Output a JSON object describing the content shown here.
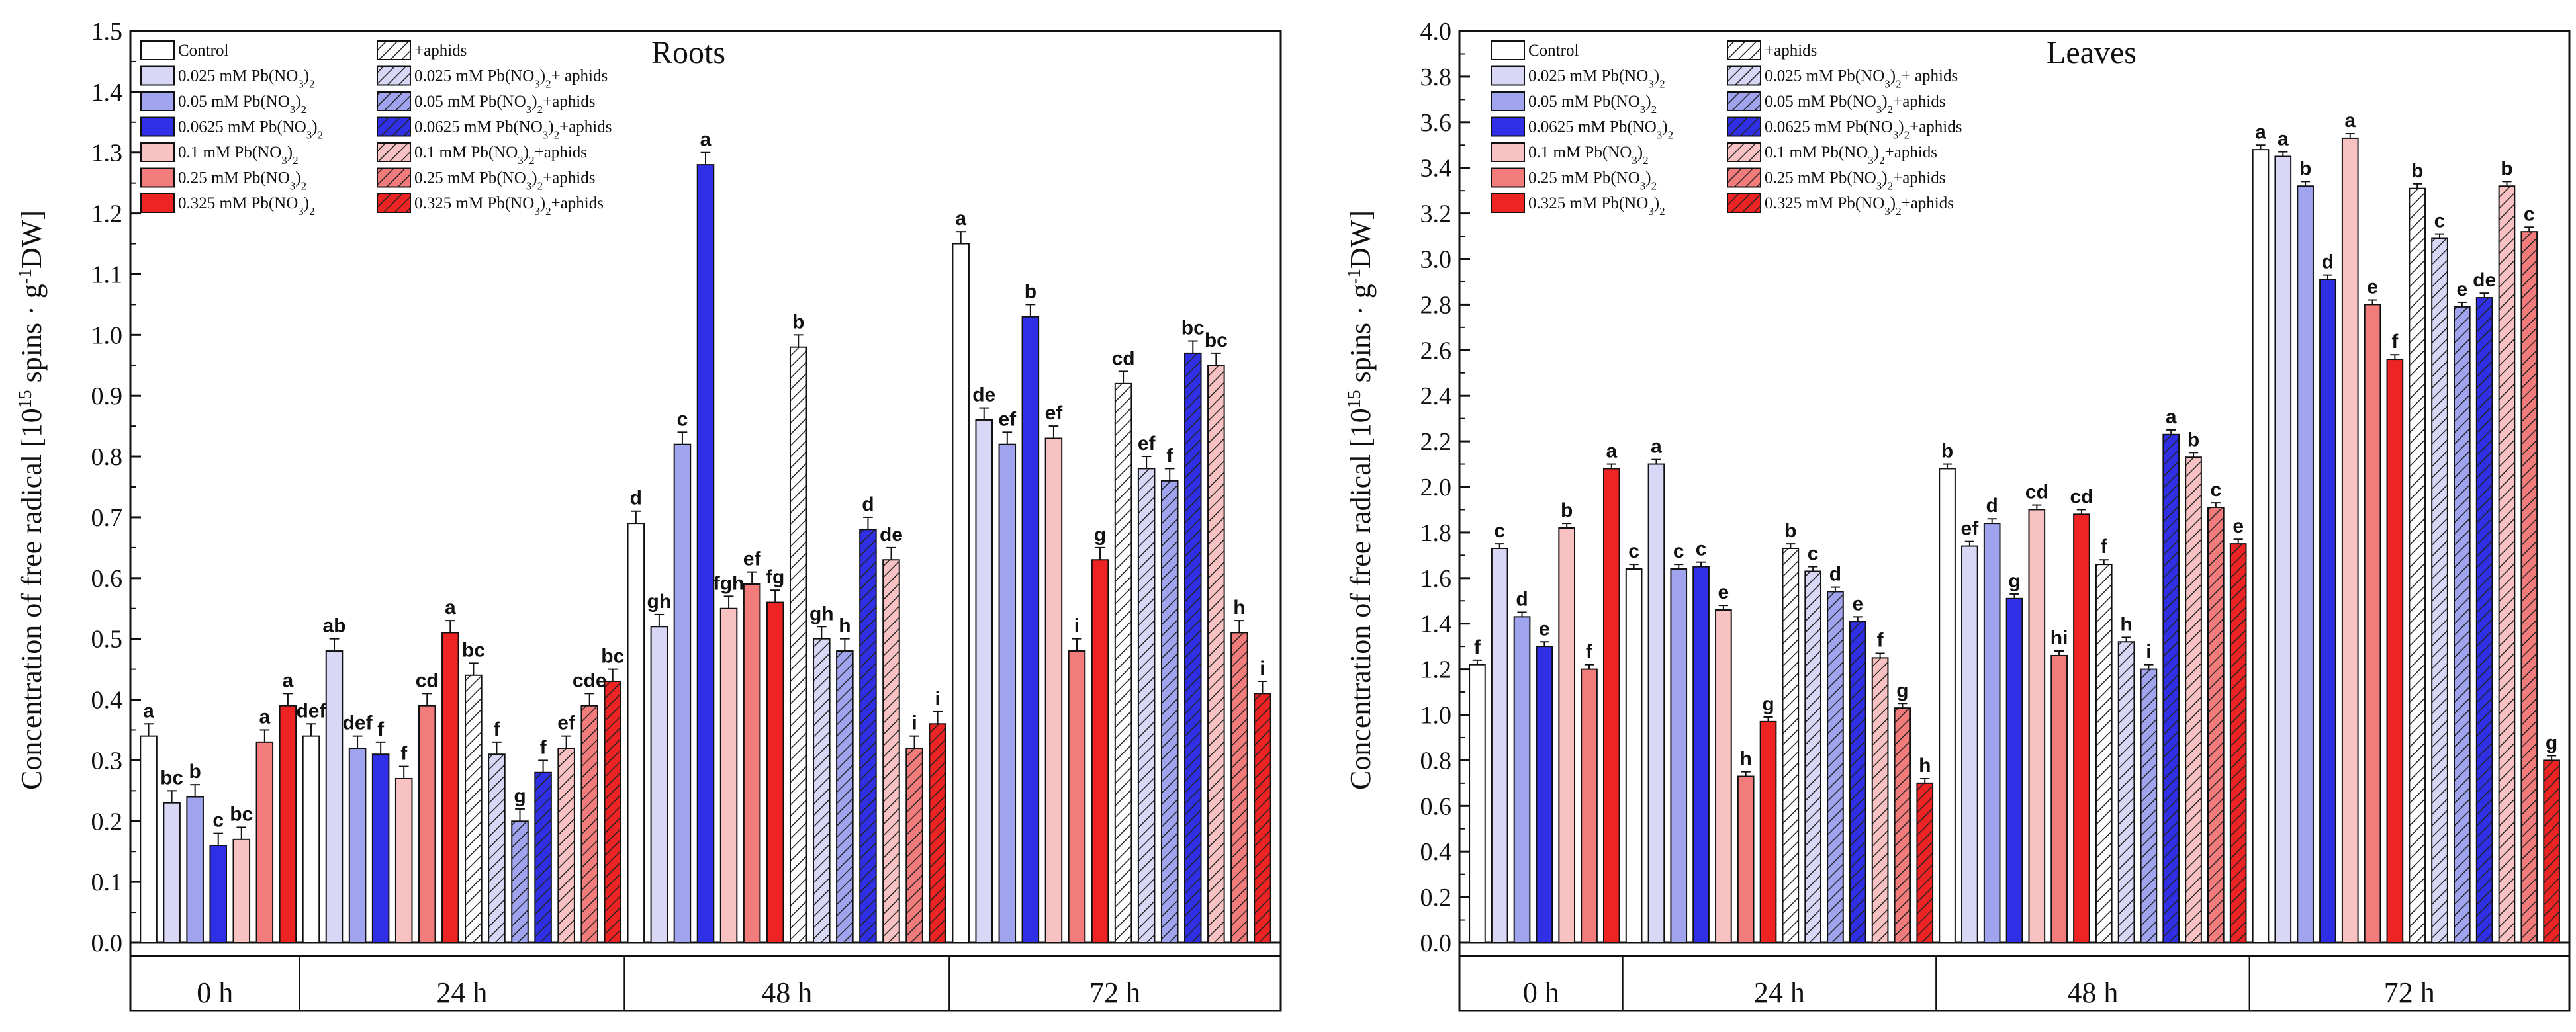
{
  "colors": {
    "control": "#ffffff",
    "pb_0025": "#d8d8f6",
    "pb_005": "#a0a4ee",
    "pb_00625": "#2f2fe6",
    "pb_01": "#f8c2c2",
    "pb_025": "#f27b7b",
    "pb_0325": "#ee2323"
  },
  "legend": {
    "plain": [
      {
        "key": "control",
        "label": "Control"
      },
      {
        "key": "pb_0025",
        "label": "0.025 mM Pb(NO3)2"
      },
      {
        "key": "pb_005",
        "label": "0.05  mM Pb(NO3)2"
      },
      {
        "key": "pb_00625",
        "label": "0.0625  mM Pb(NO3)2"
      },
      {
        "key": "pb_01",
        "label": "0.1  mM Pb(NO3)2"
      },
      {
        "key": "pb_025",
        "label": "0.25  mM Pb(NO3)2"
      },
      {
        "key": "pb_0325",
        "label": "0.325  mM Pb(NO3)2"
      }
    ],
    "hatched": [
      {
        "key": "control",
        "label": "+aphids"
      },
      {
        "key": "pb_0025",
        "label": "0.025 mM Pb(NO3)2+ aphids"
      },
      {
        "key": "pb_005",
        "label": "0.05 mM Pb(NO3)2+aphids"
      },
      {
        "key": "pb_00625",
        "label": "0.0625 mM Pb(NO3)2+aphids"
      },
      {
        "key": "pb_01",
        "label": "0.1 mM Pb(NO3)2+aphids"
      },
      {
        "key": "pb_025",
        "label": "0.25 mM Pb(NO3)2+aphids"
      },
      {
        "key": "pb_0325",
        "label": "0.325 mM Pb(NO3)2+aphids"
      }
    ]
  },
  "chart_data": [
    {
      "type": "bar",
      "title": "Roots",
      "ylabel": "Concentration of free radical [10^15 spins · g^-1 DW]",
      "ylim": [
        0,
        1.5
      ],
      "yticks": [
        "0.0",
        "0.1",
        "0.2",
        "0.3",
        "0.4",
        "0.5",
        "0.6",
        "0.7",
        "0.8",
        "0.9",
        "1.0",
        "1.1",
        "1.2",
        "1.3",
        "1.4",
        "1.5"
      ],
      "time_labels": [
        "0 h",
        "24 h",
        "48 h",
        "72 h"
      ],
      "bars": [
        {
          "time": 0,
          "color": "control",
          "hatched": false,
          "value": 0.34,
          "error": 0.02,
          "letter": "a"
        },
        {
          "time": 0,
          "color": "pb_0025",
          "hatched": false,
          "value": 0.23,
          "error": 0.02,
          "letter": "bc"
        },
        {
          "time": 0,
          "color": "pb_005",
          "hatched": false,
          "value": 0.24,
          "error": 0.02,
          "letter": "b"
        },
        {
          "time": 0,
          "color": "pb_00625",
          "hatched": false,
          "value": 0.16,
          "error": 0.02,
          "letter": "c"
        },
        {
          "time": 0,
          "color": "pb_01",
          "hatched": false,
          "value": 0.17,
          "error": 0.02,
          "letter": "bc"
        },
        {
          "time": 0,
          "color": "pb_025",
          "hatched": false,
          "value": 0.33,
          "error": 0.02,
          "letter": "a"
        },
        {
          "time": 0,
          "color": "pb_0325",
          "hatched": false,
          "value": 0.39,
          "error": 0.02,
          "letter": "a"
        },
        {
          "time": 1,
          "color": "control",
          "hatched": false,
          "value": 0.34,
          "error": 0.02,
          "letter": "def"
        },
        {
          "time": 1,
          "color": "pb_0025",
          "hatched": false,
          "value": 0.48,
          "error": 0.02,
          "letter": "ab"
        },
        {
          "time": 1,
          "color": "pb_005",
          "hatched": false,
          "value": 0.32,
          "error": 0.02,
          "letter": "def"
        },
        {
          "time": 1,
          "color": "pb_00625",
          "hatched": false,
          "value": 0.31,
          "error": 0.02,
          "letter": "f"
        },
        {
          "time": 1,
          "color": "pb_01",
          "hatched": false,
          "value": 0.27,
          "error": 0.02,
          "letter": "f"
        },
        {
          "time": 1,
          "color": "pb_025",
          "hatched": false,
          "value": 0.39,
          "error": 0.02,
          "letter": "cd"
        },
        {
          "time": 1,
          "color": "pb_0325",
          "hatched": false,
          "value": 0.51,
          "error": 0.02,
          "letter": "a"
        },
        {
          "time": 1,
          "color": "control",
          "hatched": true,
          "value": 0.44,
          "error": 0.02,
          "letter": "bc"
        },
        {
          "time": 1,
          "color": "pb_0025",
          "hatched": true,
          "value": 0.31,
          "error": 0.02,
          "letter": "f"
        },
        {
          "time": 1,
          "color": "pb_005",
          "hatched": true,
          "value": 0.2,
          "error": 0.02,
          "letter": "g"
        },
        {
          "time": 1,
          "color": "pb_00625",
          "hatched": true,
          "value": 0.28,
          "error": 0.02,
          "letter": "f"
        },
        {
          "time": 1,
          "color": "pb_01",
          "hatched": true,
          "value": 0.32,
          "error": 0.02,
          "letter": "ef"
        },
        {
          "time": 1,
          "color": "pb_025",
          "hatched": true,
          "value": 0.39,
          "error": 0.02,
          "letter": "cde"
        },
        {
          "time": 1,
          "color": "pb_0325",
          "hatched": true,
          "value": 0.43,
          "error": 0.02,
          "letter": "bc"
        },
        {
          "time": 2,
          "color": "control",
          "hatched": false,
          "value": 0.69,
          "error": 0.02,
          "letter": "d"
        },
        {
          "time": 2,
          "color": "pb_0025",
          "hatched": false,
          "value": 0.52,
          "error": 0.02,
          "letter": "gh"
        },
        {
          "time": 2,
          "color": "pb_005",
          "hatched": false,
          "value": 0.82,
          "error": 0.02,
          "letter": "c"
        },
        {
          "time": 2,
          "color": "pb_00625",
          "hatched": false,
          "value": 1.28,
          "error": 0.02,
          "letter": "a"
        },
        {
          "time": 2,
          "color": "pb_01",
          "hatched": false,
          "value": 0.55,
          "error": 0.02,
          "letter": "fgh"
        },
        {
          "time": 2,
          "color": "pb_025",
          "hatched": false,
          "value": 0.59,
          "error": 0.02,
          "letter": "ef"
        },
        {
          "time": 2,
          "color": "pb_0325",
          "hatched": false,
          "value": 0.56,
          "error": 0.02,
          "letter": "fg"
        },
        {
          "time": 2,
          "color": "control",
          "hatched": true,
          "value": 0.98,
          "error": 0.02,
          "letter": "b"
        },
        {
          "time": 2,
          "color": "pb_0025",
          "hatched": true,
          "value": 0.5,
          "error": 0.02,
          "letter": "gh"
        },
        {
          "time": 2,
          "color": "pb_005",
          "hatched": true,
          "value": 0.48,
          "error": 0.02,
          "letter": "h"
        },
        {
          "time": 2,
          "color": "pb_00625",
          "hatched": true,
          "value": 0.68,
          "error": 0.02,
          "letter": "d"
        },
        {
          "time": 2,
          "color": "pb_01",
          "hatched": true,
          "value": 0.63,
          "error": 0.02,
          "letter": "de"
        },
        {
          "time": 2,
          "color": "pb_025",
          "hatched": true,
          "value": 0.32,
          "error": 0.02,
          "letter": "i"
        },
        {
          "time": 2,
          "color": "pb_0325",
          "hatched": true,
          "value": 0.36,
          "error": 0.02,
          "letter": "i"
        },
        {
          "time": 3,
          "color": "control",
          "hatched": false,
          "value": 1.15,
          "error": 0.02,
          "letter": "a"
        },
        {
          "time": 3,
          "color": "pb_0025",
          "hatched": false,
          "value": 0.86,
          "error": 0.02,
          "letter": "de"
        },
        {
          "time": 3,
          "color": "pb_005",
          "hatched": false,
          "value": 0.82,
          "error": 0.02,
          "letter": "ef"
        },
        {
          "time": 3,
          "color": "pb_00625",
          "hatched": false,
          "value": 1.03,
          "error": 0.02,
          "letter": "b"
        },
        {
          "time": 3,
          "color": "pb_01",
          "hatched": false,
          "value": 0.83,
          "error": 0.02,
          "letter": "ef"
        },
        {
          "time": 3,
          "color": "pb_025",
          "hatched": false,
          "value": 0.48,
          "error": 0.02,
          "letter": "i"
        },
        {
          "time": 3,
          "color": "pb_0325",
          "hatched": false,
          "value": 0.63,
          "error": 0.02,
          "letter": "g"
        },
        {
          "time": 3,
          "color": "control",
          "hatched": true,
          "value": 0.92,
          "error": 0.02,
          "letter": "cd"
        },
        {
          "time": 3,
          "color": "pb_0025",
          "hatched": true,
          "value": 0.78,
          "error": 0.02,
          "letter": "ef"
        },
        {
          "time": 3,
          "color": "pb_005",
          "hatched": true,
          "value": 0.76,
          "error": 0.02,
          "letter": "f"
        },
        {
          "time": 3,
          "color": "pb_00625",
          "hatched": true,
          "value": 0.97,
          "error": 0.02,
          "letter": "bc"
        },
        {
          "time": 3,
          "color": "pb_01",
          "hatched": true,
          "value": 0.95,
          "error": 0.02,
          "letter": "bc"
        },
        {
          "time": 3,
          "color": "pb_025",
          "hatched": true,
          "value": 0.51,
          "error": 0.02,
          "letter": "h"
        },
        {
          "time": 3,
          "color": "pb_0325",
          "hatched": true,
          "value": 0.41,
          "error": 0.02,
          "letter": "i"
        }
      ]
    },
    {
      "type": "bar",
      "title": "Leaves",
      "ylabel": "Concentration of free radical [10^15 spins · g^-1 DW]",
      "ylim": [
        0,
        4.0
      ],
      "yticks": [
        "0.0",
        "0.2",
        "0.4",
        "0.6",
        "0.8",
        "1.0",
        "1.2",
        "1.4",
        "1.6",
        "1.8",
        "2.0",
        "2.2",
        "2.4",
        "2.6",
        "2.8",
        "3.0",
        "3.2",
        "3.4",
        "3.6",
        "3.8",
        "4.0"
      ],
      "time_labels": [
        "0 h",
        "24 h",
        "48 h",
        "72 h"
      ],
      "bars": [
        {
          "time": 0,
          "color": "control",
          "hatched": false,
          "value": 1.22,
          "error": 0.02,
          "letter": "f"
        },
        {
          "time": 0,
          "color": "pb_0025",
          "hatched": false,
          "value": 1.73,
          "error": 0.02,
          "letter": "c"
        },
        {
          "time": 0,
          "color": "pb_005",
          "hatched": false,
          "value": 1.43,
          "error": 0.02,
          "letter": "d"
        },
        {
          "time": 0,
          "color": "pb_00625",
          "hatched": false,
          "value": 1.3,
          "error": 0.02,
          "letter": "e"
        },
        {
          "time": 0,
          "color": "pb_01",
          "hatched": false,
          "value": 1.82,
          "error": 0.02,
          "letter": "b"
        },
        {
          "time": 0,
          "color": "pb_025",
          "hatched": false,
          "value": 1.2,
          "error": 0.02,
          "letter": "f"
        },
        {
          "time": 0,
          "color": "pb_0325",
          "hatched": false,
          "value": 2.08,
          "error": 0.02,
          "letter": "a"
        },
        {
          "time": 1,
          "color": "control",
          "hatched": false,
          "value": 1.64,
          "error": 0.02,
          "letter": "c"
        },
        {
          "time": 1,
          "color": "pb_0025",
          "hatched": false,
          "value": 2.1,
          "error": 0.02,
          "letter": "a"
        },
        {
          "time": 1,
          "color": "pb_005",
          "hatched": false,
          "value": 1.64,
          "error": 0.02,
          "letter": "c"
        },
        {
          "time": 1,
          "color": "pb_00625",
          "hatched": false,
          "value": 1.65,
          "error": 0.02,
          "letter": "c"
        },
        {
          "time": 1,
          "color": "pb_01",
          "hatched": false,
          "value": 1.46,
          "error": 0.02,
          "letter": "e"
        },
        {
          "time": 1,
          "color": "pb_025",
          "hatched": false,
          "value": 0.73,
          "error": 0.02,
          "letter": "h"
        },
        {
          "time": 1,
          "color": "pb_0325",
          "hatched": false,
          "value": 0.97,
          "error": 0.02,
          "letter": "g"
        },
        {
          "time": 1,
          "color": "control",
          "hatched": true,
          "value": 1.73,
          "error": 0.02,
          "letter": "b"
        },
        {
          "time": 1,
          "color": "pb_0025",
          "hatched": true,
          "value": 1.63,
          "error": 0.02,
          "letter": "c"
        },
        {
          "time": 1,
          "color": "pb_005",
          "hatched": true,
          "value": 1.54,
          "error": 0.02,
          "letter": "d"
        },
        {
          "time": 1,
          "color": "pb_00625",
          "hatched": true,
          "value": 1.41,
          "error": 0.02,
          "letter": "e"
        },
        {
          "time": 1,
          "color": "pb_01",
          "hatched": true,
          "value": 1.25,
          "error": 0.02,
          "letter": "f"
        },
        {
          "time": 1,
          "color": "pb_025",
          "hatched": true,
          "value": 1.03,
          "error": 0.02,
          "letter": "g"
        },
        {
          "time": 1,
          "color": "pb_0325",
          "hatched": true,
          "value": 0.7,
          "error": 0.02,
          "letter": "h"
        },
        {
          "time": 2,
          "color": "control",
          "hatched": false,
          "value": 2.08,
          "error": 0.02,
          "letter": "b"
        },
        {
          "time": 2,
          "color": "pb_0025",
          "hatched": false,
          "value": 1.74,
          "error": 0.02,
          "letter": "ef"
        },
        {
          "time": 2,
          "color": "pb_005",
          "hatched": false,
          "value": 1.84,
          "error": 0.02,
          "letter": "d"
        },
        {
          "time": 2,
          "color": "pb_00625",
          "hatched": false,
          "value": 1.51,
          "error": 0.02,
          "letter": "g"
        },
        {
          "time": 2,
          "color": "pb_01",
          "hatched": false,
          "value": 1.9,
          "error": 0.02,
          "letter": "cd"
        },
        {
          "time": 2,
          "color": "pb_025",
          "hatched": false,
          "value": 1.26,
          "error": 0.02,
          "letter": "hi"
        },
        {
          "time": 2,
          "color": "pb_0325",
          "hatched": false,
          "value": 1.88,
          "error": 0.02,
          "letter": "cd"
        },
        {
          "time": 2,
          "color": "control",
          "hatched": true,
          "value": 1.66,
          "error": 0.02,
          "letter": "f"
        },
        {
          "time": 2,
          "color": "pb_0025",
          "hatched": true,
          "value": 1.32,
          "error": 0.02,
          "letter": "h"
        },
        {
          "time": 2,
          "color": "pb_005",
          "hatched": true,
          "value": 1.2,
          "error": 0.02,
          "letter": "i"
        },
        {
          "time": 2,
          "color": "pb_00625",
          "hatched": true,
          "value": 2.23,
          "error": 0.02,
          "letter": "a"
        },
        {
          "time": 2,
          "color": "pb_01",
          "hatched": true,
          "value": 2.13,
          "error": 0.02,
          "letter": "b"
        },
        {
          "time": 2,
          "color": "pb_025",
          "hatched": true,
          "value": 1.91,
          "error": 0.02,
          "letter": "c"
        },
        {
          "time": 2,
          "color": "pb_0325",
          "hatched": true,
          "value": 1.75,
          "error": 0.02,
          "letter": "e"
        },
        {
          "time": 3,
          "color": "control",
          "hatched": false,
          "value": 3.48,
          "error": 0.02,
          "letter": "a"
        },
        {
          "time": 3,
          "color": "pb_0025",
          "hatched": false,
          "value": 3.45,
          "error": 0.02,
          "letter": "a"
        },
        {
          "time": 3,
          "color": "pb_005",
          "hatched": false,
          "value": 3.32,
          "error": 0.02,
          "letter": "b"
        },
        {
          "time": 3,
          "color": "pb_00625",
          "hatched": false,
          "value": 2.91,
          "error": 0.02,
          "letter": "d"
        },
        {
          "time": 3,
          "color": "pb_01",
          "hatched": false,
          "value": 3.53,
          "error": 0.02,
          "letter": "a"
        },
        {
          "time": 3,
          "color": "pb_025",
          "hatched": false,
          "value": 2.8,
          "error": 0.02,
          "letter": "e"
        },
        {
          "time": 3,
          "color": "pb_0325",
          "hatched": false,
          "value": 2.56,
          "error": 0.02,
          "letter": "f"
        },
        {
          "time": 3,
          "color": "control",
          "hatched": true,
          "value": 3.31,
          "error": 0.02,
          "letter": "b"
        },
        {
          "time": 3,
          "color": "pb_0025",
          "hatched": true,
          "value": 3.09,
          "error": 0.02,
          "letter": "c"
        },
        {
          "time": 3,
          "color": "pb_005",
          "hatched": true,
          "value": 2.79,
          "error": 0.02,
          "letter": "e"
        },
        {
          "time": 3,
          "color": "pb_00625",
          "hatched": true,
          "value": 2.83,
          "error": 0.02,
          "letter": "de"
        },
        {
          "time": 3,
          "color": "pb_01",
          "hatched": true,
          "value": 3.32,
          "error": 0.02,
          "letter": "b"
        },
        {
          "time": 3,
          "color": "pb_025",
          "hatched": true,
          "value": 3.12,
          "error": 0.02,
          "letter": "c"
        },
        {
          "time": 3,
          "color": "pb_0325",
          "hatched": true,
          "value": 0.8,
          "error": 0.02,
          "letter": "g"
        }
      ]
    }
  ]
}
